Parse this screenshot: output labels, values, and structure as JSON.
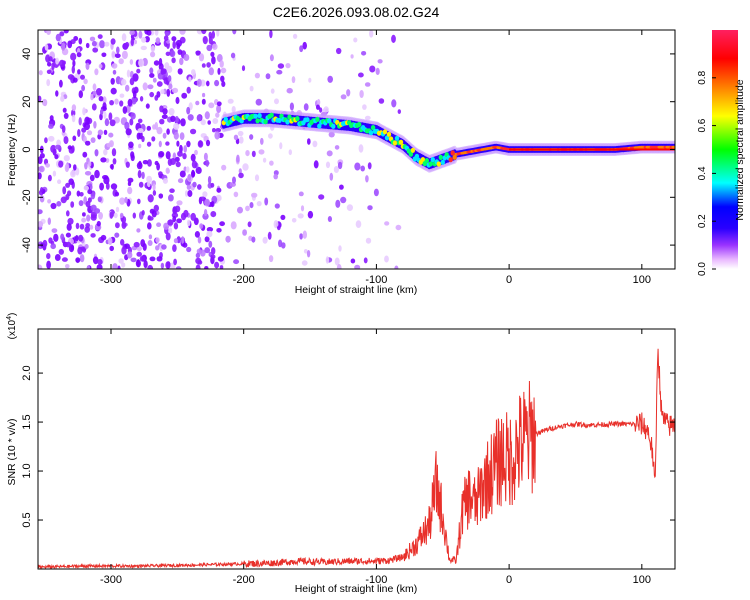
{
  "figure": {
    "title": "C2E6.2026.093.08.02.G24"
  },
  "chart_data": [
    {
      "type": "heatmap",
      "xlabel": "Height of straight line (km)",
      "ylabel": "Frequency (Hz)",
      "xlim": [
        -355,
        125
      ],
      "ylim": [
        -50,
        50
      ],
      "xticks": [
        -300,
        -200,
        -100,
        0,
        100
      ],
      "yticks": [
        -40,
        -20,
        0,
        20,
        40
      ],
      "colorbar": {
        "label": "Normalized spectral amplitude",
        "range": [
          0.0,
          1.0
        ],
        "ticks": [
          0.0,
          0.2,
          0.4,
          0.6,
          0.8
        ],
        "colormap": [
          "#ffffff",
          "#d580ff",
          "#7a00ff",
          "#0000ff",
          "#00ffff",
          "#00ff00",
          "#ffff00",
          "#ff7f00",
          "#ff0000",
          "#ff1e64"
        ]
      },
      "ridge": {
        "x": [
          -215,
          -200,
          -180,
          -160,
          -140,
          -120,
          -100,
          -90,
          -80,
          -70,
          -60,
          -50,
          -40,
          -30,
          -20,
          -10,
          0,
          20,
          40,
          60,
          80,
          100,
          125
        ],
        "y": [
          11,
          13,
          13,
          12,
          11,
          10,
          8,
          5,
          2,
          -3,
          -6,
          -4,
          -2,
          -1,
          0,
          1,
          0,
          0,
          0,
          0,
          0,
          1,
          1
        ]
      },
      "grid": false
    },
    {
      "type": "line",
      "xlabel": "Height of straight line (km)",
      "ylabel": "SNR (10 * v/v)",
      "y_multiplier": "(x10^4)",
      "xlim": [
        -355,
        125
      ],
      "ylim": [
        0,
        2.45
      ],
      "xticks": [
        -300,
        -200,
        -100,
        0,
        100
      ],
      "yticks": [
        0.5,
        1.0,
        1.5,
        2.0
      ],
      "series": [
        {
          "color": "#e8302a",
          "x": [
            -355,
            -320,
            -280,
            -240,
            -210,
            -180,
            -160,
            -140,
            -120,
            -100,
            -90,
            -80,
            -70,
            -60,
            -55,
            -50,
            -45,
            -40,
            -35,
            -30,
            -25,
            -20,
            -15,
            -10,
            -5,
            0,
            10,
            20,
            30,
            40,
            50,
            60,
            80,
            100,
            105,
            108,
            110,
            112,
            115,
            120,
            125
          ],
          "y": [
            0.02,
            0.03,
            0.03,
            0.04,
            0.05,
            0.06,
            0.08,
            0.07,
            0.08,
            0.08,
            0.09,
            0.12,
            0.25,
            0.45,
            0.85,
            0.55,
            0.1,
            0.08,
            0.6,
            0.75,
            0.65,
            0.85,
            0.95,
            1.05,
            1.15,
            1.1,
            1.3,
            1.38,
            1.43,
            1.46,
            1.48,
            1.47,
            1.48,
            1.48,
            1.4,
            1.2,
            0.8,
            2.3,
            1.55,
            1.46,
            1.47
          ]
        }
      ],
      "grid": false
    }
  ]
}
